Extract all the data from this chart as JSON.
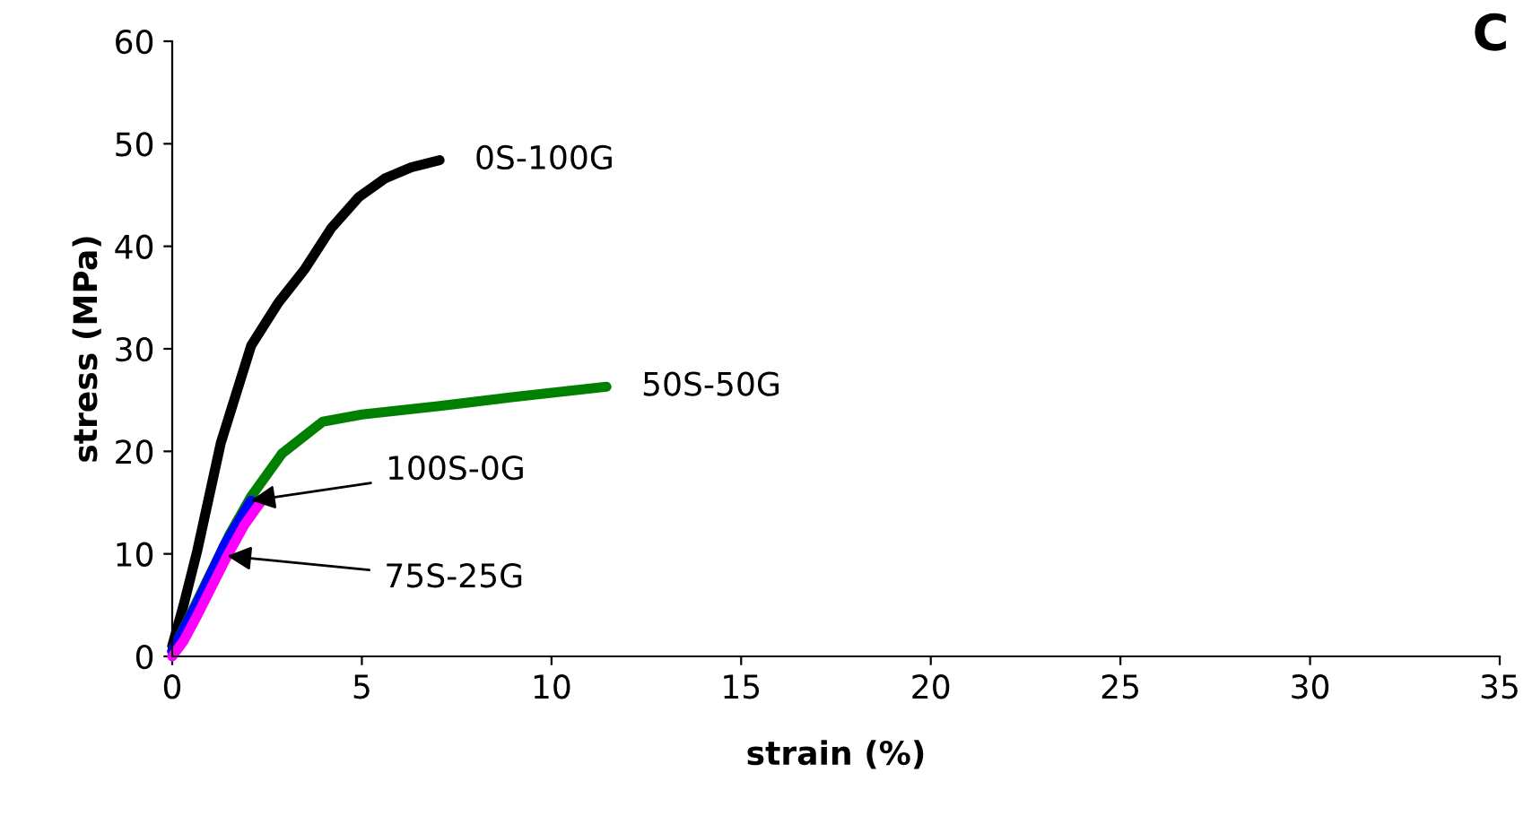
{
  "chart_data": {
    "type": "line",
    "xlabel": "strain (%)",
    "ylabel": "stress (MPa)",
    "xlim": [
      0,
      35
    ],
    "ylim": [
      0,
      60
    ],
    "xticks": [
      0,
      5,
      10,
      15,
      20,
      25,
      30,
      35
    ],
    "yticks": [
      0,
      10,
      20,
      30,
      40,
      50,
      60
    ],
    "grid": false,
    "legend": false,
    "marker": "none",
    "line_style": "solid",
    "series": [
      {
        "name": "0S-100G",
        "color": "#000000",
        "x": [
          0,
          0.3,
          0.66,
          1.28,
          2.08,
          2.8,
          3.5,
          4.2,
          4.92,
          5.6,
          6.3,
          7.05
        ],
        "values": [
          1,
          5,
          10.3,
          20.8,
          30.3,
          34.5,
          37.8,
          41.8,
          44.8,
          46.6,
          47.7,
          48.4
        ]
      },
      {
        "name": "50S-50G",
        "color": "#008000",
        "x": [
          0,
          0.5,
          1.0,
          1.5,
          2.08,
          2.9,
          3.97,
          5,
          7,
          9,
          11.45
        ],
        "values": [
          0.5,
          4.2,
          8,
          11.8,
          15.6,
          19.8,
          22.9,
          23.6,
          24.4,
          25.3,
          26.3
        ]
      },
      {
        "color": "#0000ff",
        "x": [
          0,
          0.7,
          1.4,
          2.08
        ],
        "values": [
          0.5,
          5.5,
          11,
          15.2
        ]
      },
      {
        "color": "#ff00ff",
        "x": [
          0,
          0.3,
          0.66,
          1.0,
          1.45,
          1.9,
          2.4
        ],
        "values": [
          0,
          1.5,
          4.0,
          6.5,
          9.8,
          12.8,
          15.4
        ]
      }
    ],
    "annotations": [
      {
        "text": "100S-0G",
        "x": 2.08,
        "y": 15.2
      },
      {
        "text": "75S-25G",
        "x": 1.45,
        "y": 9.8
      },
      "C"
    ]
  }
}
